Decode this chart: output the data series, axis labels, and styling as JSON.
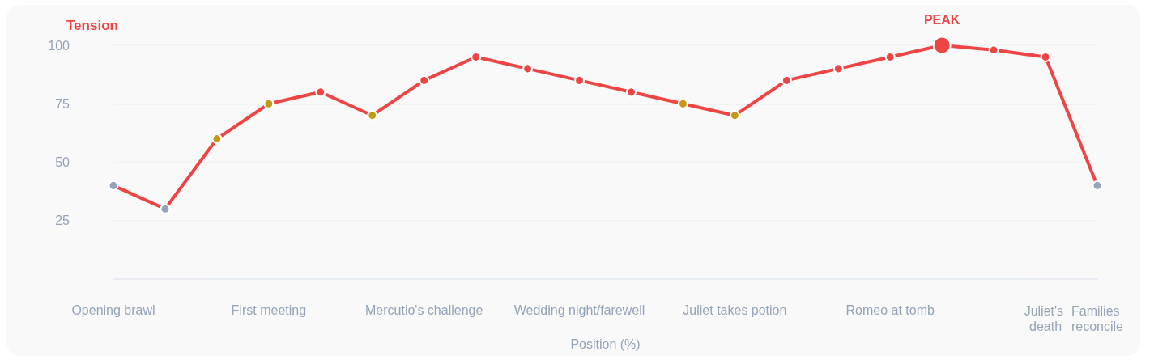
{
  "chart_data": {
    "type": "line",
    "xlabel": "Position (%)",
    "ylabel": "Tension",
    "categories": [
      "Opening brawl",
      null,
      null,
      "First meeting",
      null,
      null,
      "Mercutio's challenge",
      null,
      null,
      "Wedding night/farewell",
      null,
      null,
      "Juliet takes potion",
      null,
      null,
      "Romeo at tomb",
      null,
      null,
      "Juliet's death",
      "Families reconcile"
    ],
    "series": [
      {
        "color": "#ef4444",
        "colors": [
          "#94a3b8",
          "#94a3b8",
          "#c29a18",
          "#c29a18",
          "#ef4444",
          "#c29a18",
          "#ef4444",
          "#ef4444",
          "#ef4444",
          "#ef4444",
          "#ef4444",
          "#c29a18",
          "#c29a18",
          "#ef4444",
          "#ef4444",
          "#ef4444",
          "#ef4444",
          "#ef4444",
          "#ef4444",
          "#94a3b8"
        ],
        "values": [
          40,
          30,
          60,
          75,
          80,
          70,
          85,
          95,
          90,
          85,
          80,
          75,
          70,
          85,
          90,
          95,
          100,
          98,
          95,
          40
        ]
      }
    ],
    "ylim": [
      0,
      100
    ],
    "yticks": [
      25,
      50,
      75,
      100
    ],
    "grid": "y",
    "marker": "circle",
    "line_style": "solid",
    "annotations": [
      {
        "text": "PEAK",
        "y": 100
      }
    ]
  }
}
